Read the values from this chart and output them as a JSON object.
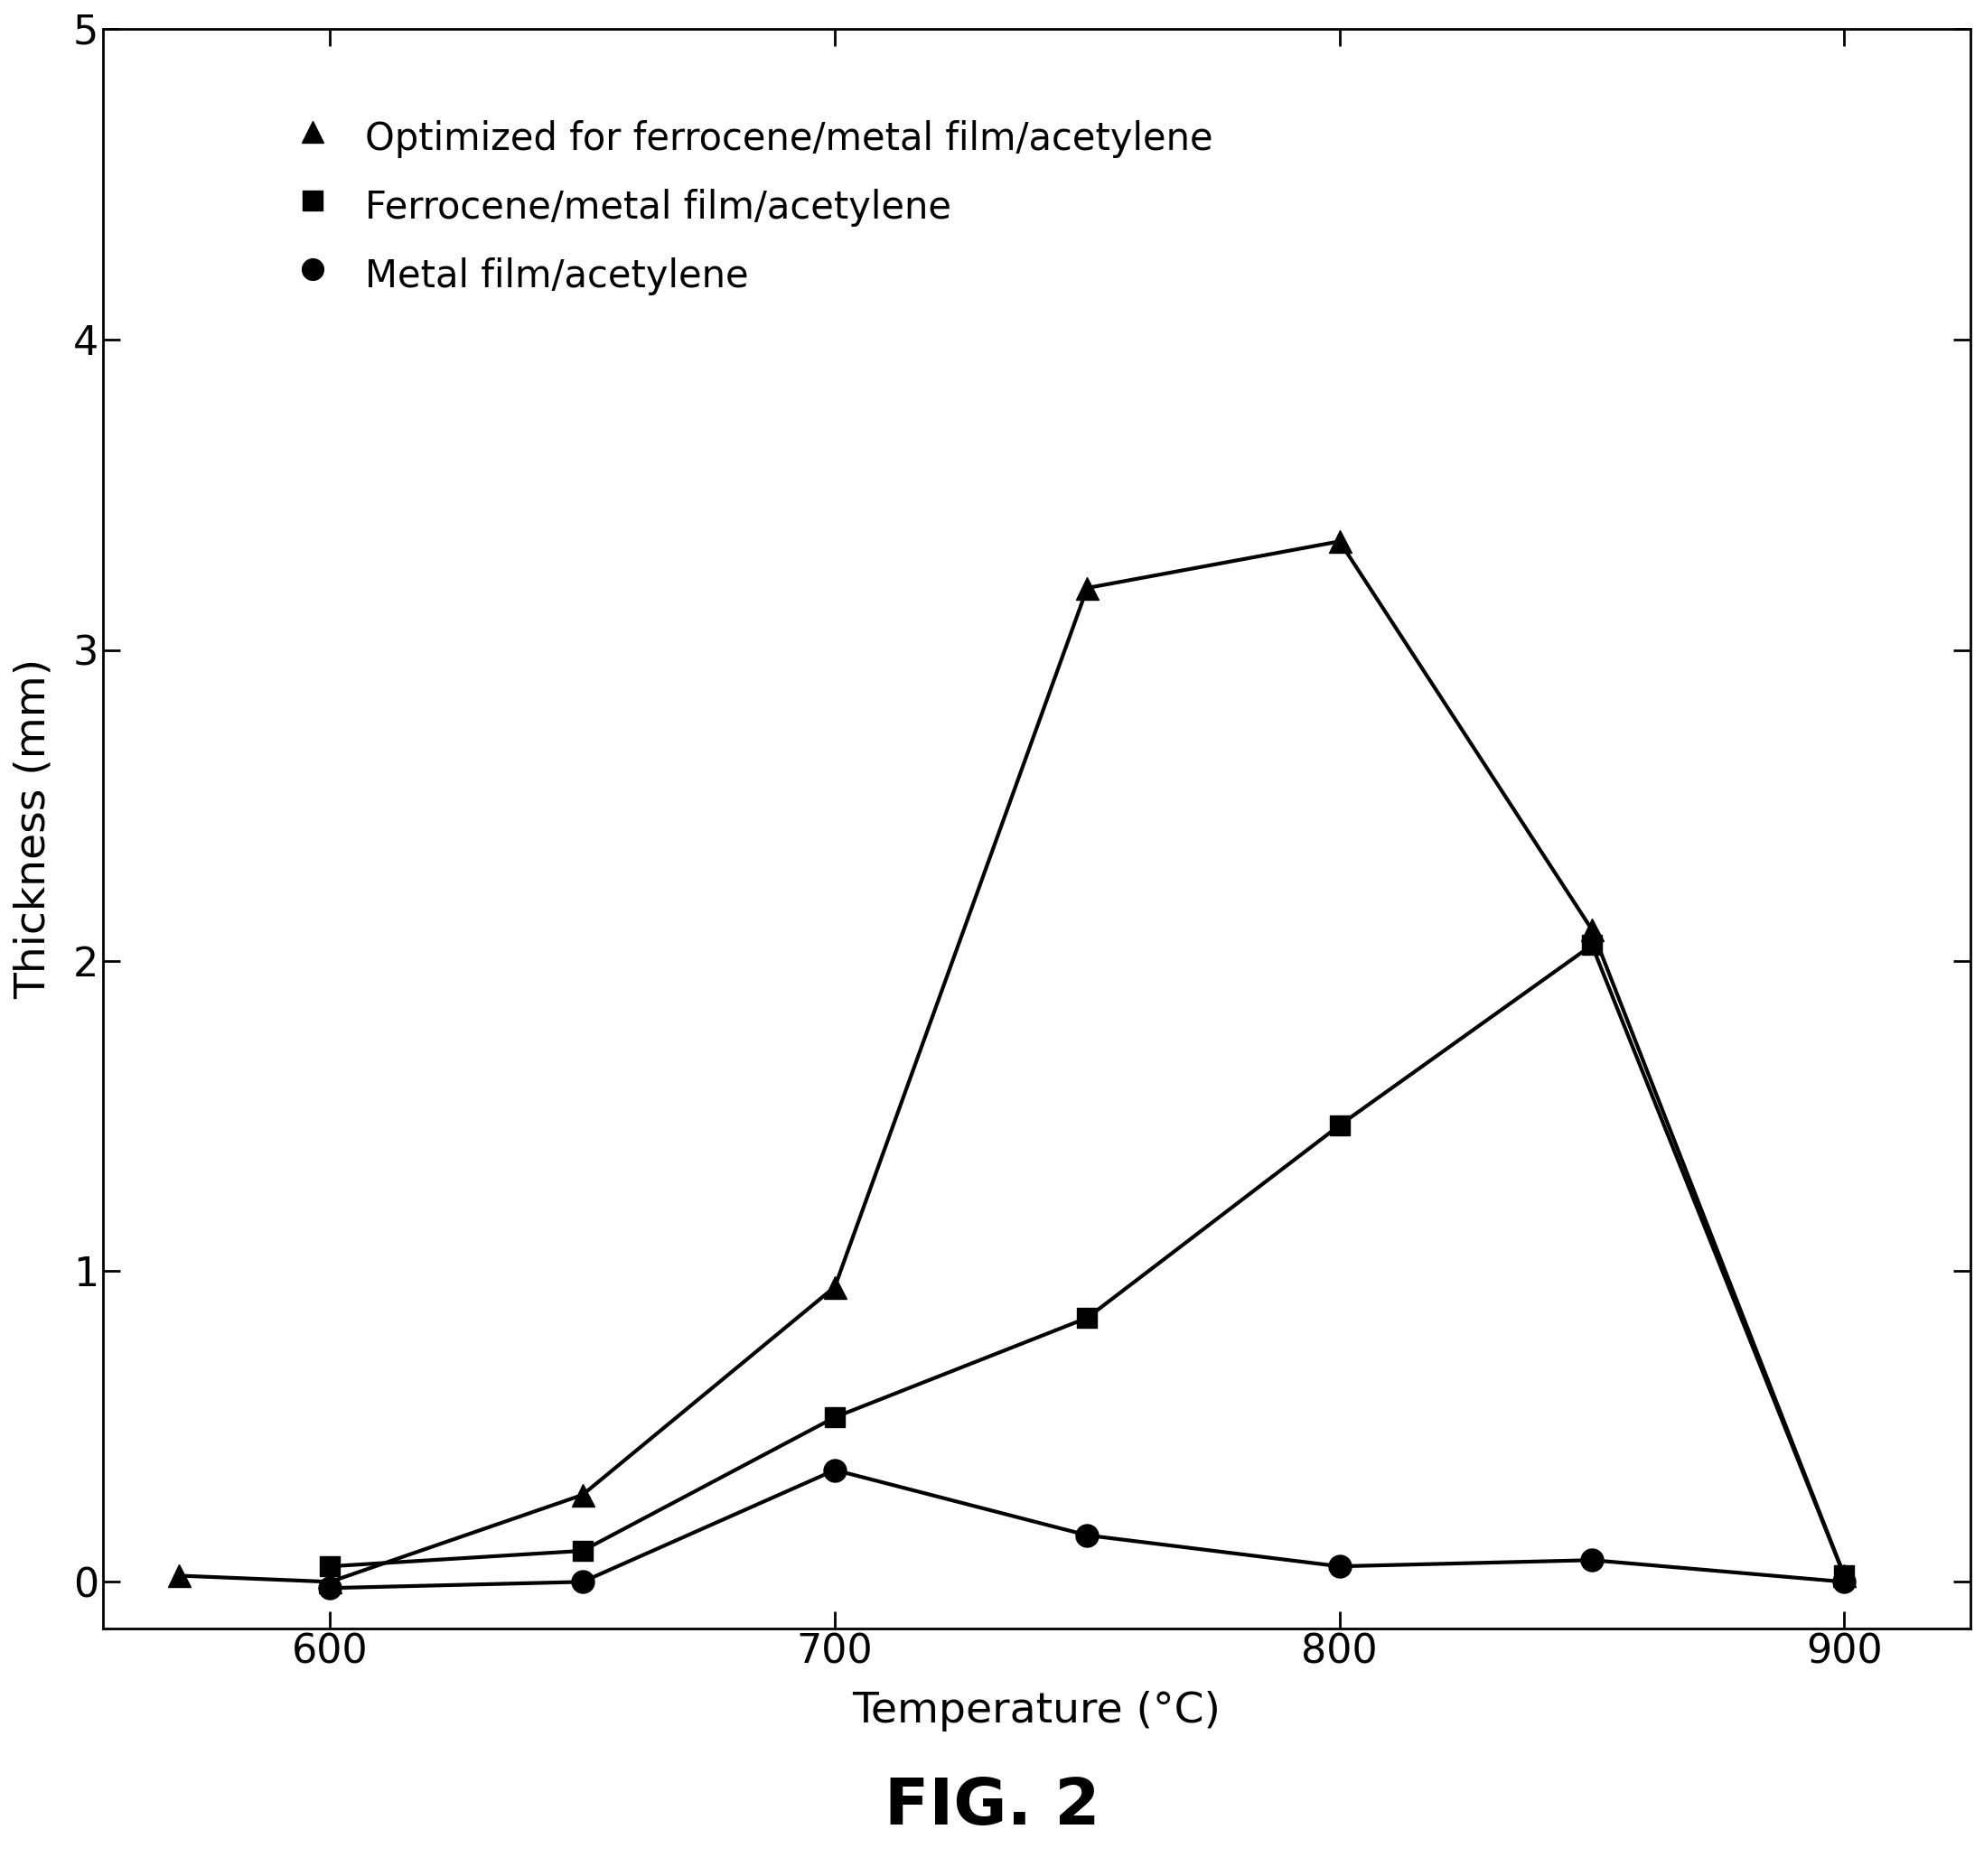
{
  "series1": {
    "label": "Optimized for ferrocene/metal film/acetylene",
    "x": [
      570,
      600,
      650,
      700,
      750,
      800,
      850,
      900
    ],
    "y": [
      0.02,
      0.0,
      0.28,
      0.95,
      3.2,
      3.35,
      2.1,
      0.02
    ],
    "marker": "^"
  },
  "series2": {
    "label": "Ferrocene/metal film/acetylene",
    "x": [
      600,
      650,
      700,
      750,
      800,
      850,
      900
    ],
    "y": [
      0.05,
      0.1,
      0.53,
      0.85,
      1.47,
      2.05,
      0.02
    ],
    "marker": "s"
  },
  "series3": {
    "label": "Metal film/acetylene",
    "x": [
      600,
      650,
      700,
      750,
      800,
      850,
      900
    ],
    "y": [
      -0.02,
      0.0,
      0.36,
      0.15,
      0.05,
      0.07,
      0.0
    ],
    "marker": "o"
  },
  "xlim": [
    555,
    925
  ],
  "ylim": [
    -0.15,
    5.0
  ],
  "yticks": [
    0,
    1,
    2,
    3,
    4,
    5
  ],
  "xticks": [
    600,
    700,
    800,
    900
  ],
  "xlabel": "Temperature (°C)",
  "ylabel": "Thickness (mm)",
  "figure_caption": "FIG. 2",
  "line_color": "black",
  "marker_size": 18,
  "line_width": 3.0,
  "background_color": "white",
  "legend_fontsize": 30,
  "axis_fontsize": 34,
  "tick_fontsize": 32,
  "caption_fontsize": 52
}
